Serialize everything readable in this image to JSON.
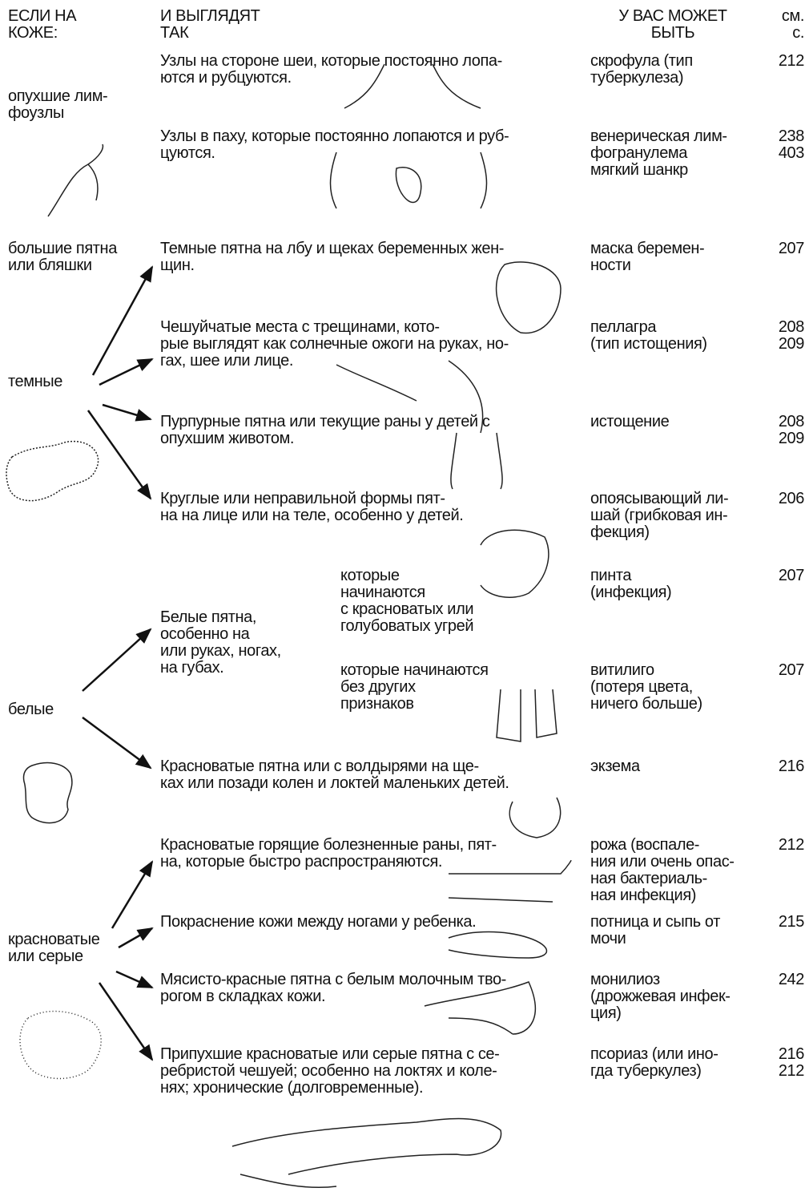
{
  "header": {
    "col1": [
      "ЕСЛИ НА",
      "КОЖЕ:"
    ],
    "col2": [
      "И ВЫГЛЯДЯТ",
      "ТАК"
    ],
    "col3": [
      "У ВАС МОЖЕТ",
      "БЫТЬ"
    ],
    "col4": [
      "см.",
      "с."
    ]
  },
  "skin_types": [
    [
      "опухшие лим-",
      "фоузлы"
    ],
    [
      "большие пятна",
      "или бляшки"
    ],
    [
      "темные"
    ],
    [
      "белые"
    ],
    [
      "красноватые",
      "или серые"
    ]
  ],
  "white_patches_intro": [
    "Белые пятна,",
    "особенно на",
    "или руках, ногах,",
    "на губах."
  ],
  "rows": [
    {
      "description": [
        "Узлы на стороне шеи, которые постоянно лопа-",
        "ются и рубцуются."
      ],
      "condition": [
        "скрофула (тип",
        "туберкулеза)"
      ],
      "pages": [
        212
      ]
    },
    {
      "description": [
        "Узлы в паху, которые постоянно лопаются и руб-",
        "цуются."
      ],
      "condition": [
        "венерическая лим-",
        "фогранулема",
        "мягкий шанкр"
      ],
      "pages": [
        238,
        403
      ]
    },
    {
      "description": [
        "Темные пятна на лбу и щеках беременных жен-",
        "щин."
      ],
      "condition": [
        "маска беремен-",
        "ности"
      ],
      "pages": [
        207
      ]
    },
    {
      "description": [
        "Чешуйчатые места с трещинами, кото-",
        "рые выглядят как солнечные ожоги на руках, но-",
        "гах, шее или лице."
      ],
      "condition": [
        "пеллагра",
        "(тип истощения)"
      ],
      "pages": [
        208,
        209
      ]
    },
    {
      "description": [
        "Пурпурные пятна или текущие раны у детей с",
        "опухшим животом."
      ],
      "condition": [
        "истощение"
      ],
      "pages": [
        208,
        209
      ]
    },
    {
      "description": [
        "Круглые или неправильной формы пят-",
        "на на лице или на теле, особенно у детей."
      ],
      "condition": [
        "опоясывающий ли-",
        "шай (грибковая ин-",
        "фекция)"
      ],
      "pages": [
        206
      ]
    },
    {
      "description": [
        "которые",
        "начинаются",
        "с красноватых или",
        "голубоватых угрей"
      ],
      "condition": [
        "пинта",
        "(инфекция)"
      ],
      "pages": [
        207
      ]
    },
    {
      "description": [
        "которые начинаются",
        "без других",
        "признаков"
      ],
      "condition": [
        "витилиго",
        "(потеря цвета,",
        "ничего больше)"
      ],
      "pages": [
        207
      ]
    },
    {
      "description": [
        "Красноватые пятна или с волдырями на ще-",
        "ках или позади колен и локтей маленьких детей."
      ],
      "condition": [
        "экзема"
      ],
      "pages": [
        216
      ]
    },
    {
      "description": [
        "Красноватые горящие болезненные раны, пят-",
        "на, которые быстро распространяются."
      ],
      "condition": [
        "рожа (воспале-",
        "ния или очень опас-",
        "ная бактериаль-",
        "ная инфекция)"
      ],
      "pages": [
        212
      ]
    },
    {
      "description": [
        "Покраснение кожи между ногами у ребенка."
      ],
      "condition": [
        "потница и сыпь от",
        "мочи"
      ],
      "pages": [
        215
      ]
    },
    {
      "description": [
        "Мясисто-красные пятна с белым молочным тво-",
        "рогом в складках кожи."
      ],
      "condition": [
        "монилиоз",
        "(дрожжевая инфек-",
        "ция)"
      ],
      "pages": [
        242
      ]
    },
    {
      "description": [
        "Припухшие красноватые или серые пятна с се-",
        "ребристой чешуей; особенно на локтях и коле-",
        "нях; хронические (долговременные)."
      ],
      "condition": [
        "псориаз (или ино-",
        "гда туберкулез)"
      ],
      "pages": [
        216,
        212
      ]
    }
  ]
}
